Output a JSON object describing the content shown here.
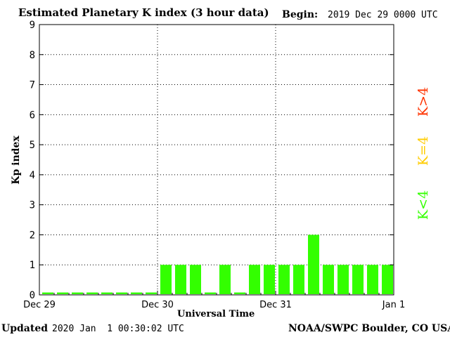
{
  "header": {
    "title": "Estimated Planetary K index (3 hour data)",
    "begin_label": "Begin:",
    "begin_value": "2019 Dec 29 0000 UTC"
  },
  "footer": {
    "updated_label": "Updated",
    "updated_value": "2020 Jan  1 00:30:02 UTC",
    "credit": "NOAA/SWPC Boulder, CO USA"
  },
  "legend": [
    {
      "label": "K>4",
      "color": "#ff3300"
    },
    {
      "label": "K=4",
      "color": "#ffcc00"
    },
    {
      "label": "K<4",
      "color": "#33ff00"
    }
  ],
  "chart_data": {
    "type": "bar",
    "title": "Estimated Planetary K index (3 hour data)",
    "xlabel": "Universal Time",
    "ylabel": "Kp index",
    "ylim": [
      0,
      9
    ],
    "yticks": [
      0,
      1,
      2,
      3,
      4,
      5,
      6,
      7,
      8,
      9
    ],
    "xtick_labels": [
      "Dec 29",
      "Dec 30",
      "Dec 31",
      "Jan 1"
    ],
    "bar_color": "#33ff00",
    "grid": "dotted vertical at day boundaries, horizontal at each integer",
    "series": [
      {
        "values": [
          0,
          0,
          0,
          0,
          0,
          0,
          0,
          0,
          1,
          1,
          1,
          0,
          1,
          0,
          1,
          1,
          1,
          1,
          2,
          1,
          1,
          1,
          1,
          1
        ]
      }
    ]
  }
}
